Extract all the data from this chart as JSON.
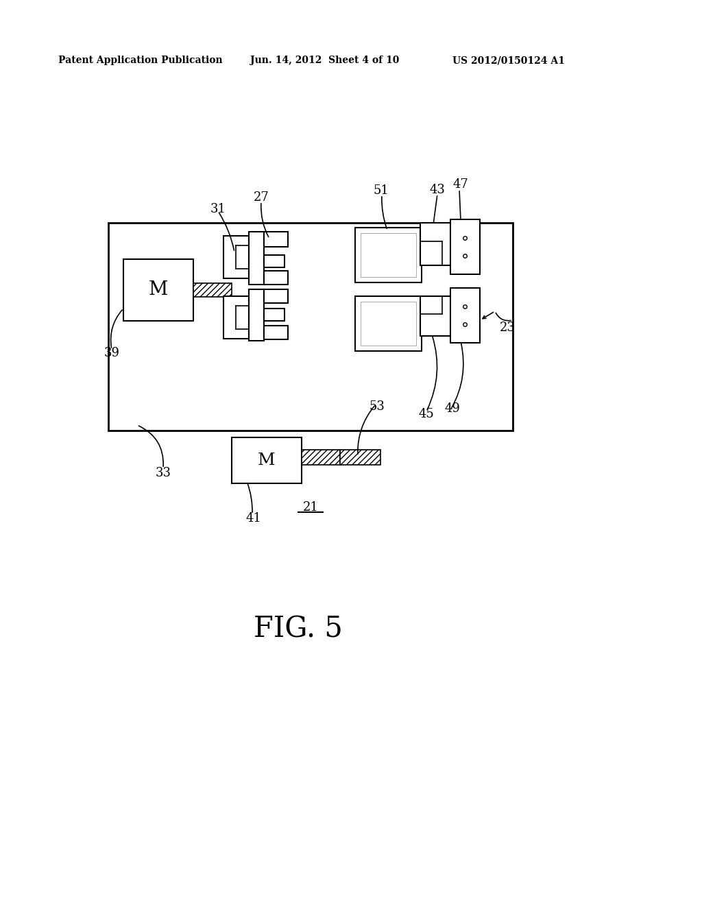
{
  "header_left": "Patent Application Publication",
  "header_center": "Jun. 14, 2012  Sheet 4 of 10",
  "header_right": "US 2012/0150124 A1",
  "bg_color": "#ffffff",
  "line_color": "#000000",
  "fig_label": "FIG. 5",
  "item_21": "21"
}
